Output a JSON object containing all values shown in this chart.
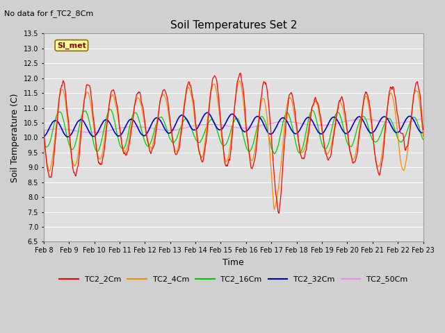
{
  "title": "Soil Temperatures Set 2",
  "subtitle": "No data for f_TC2_8Cm",
  "xlabel": "Time",
  "ylabel": "Soil Temperature (C)",
  "ylim": [
    6.5,
    13.5
  ],
  "yticks": [
    6.5,
    7.0,
    7.5,
    8.0,
    8.5,
    9.0,
    9.5,
    10.0,
    10.5,
    11.0,
    11.5,
    12.0,
    12.5,
    13.0,
    13.5
  ],
  "xtick_labels": [
    "Feb 8",
    "Feb 9",
    "Feb 10",
    "Feb 11",
    "Feb 12",
    "Feb 13",
    "Feb 14",
    "Feb 15",
    "Feb 16",
    "Feb 17",
    "Feb 18",
    "Feb 19",
    "Feb 20",
    "Feb 21",
    "Feb 22",
    "Feb 23"
  ],
  "series_colors": {
    "TC2_2Cm": "#ff0000",
    "TC2_4Cm": "#ff8800",
    "TC2_16Cm": "#00cc00",
    "TC2_32Cm": "#0000cc",
    "TC2_50Cm": "#ee88ee"
  },
  "legend_label": "SI_met",
  "legend_bg": "#ffff99",
  "legend_border": "#996600",
  "fig_bg": "#d0d0d0",
  "plot_bg": "#e0e0e0",
  "grid_color": "#ffffff",
  "n_points": 720
}
